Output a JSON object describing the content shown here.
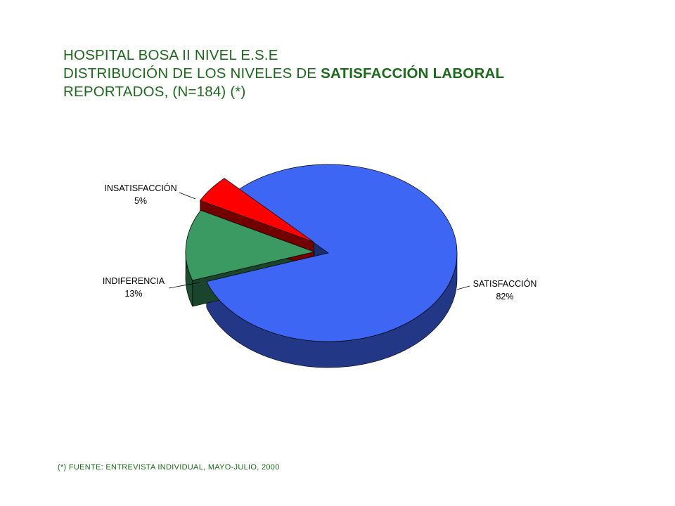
{
  "title": {
    "line1": "HOSPITAL BOSA II NIVEL E.S.E",
    "line2_prefix": "DISTRIBUCIÓN DE LOS NIVELES DE ",
    "line2_bold": "SATISFACCIÓN LABORAL",
    "line3": "REPORTADOS,  (N=184) (*)"
  },
  "chart_data": {
    "type": "pie",
    "style": "3d-exploded",
    "total_n": 184,
    "slices": [
      {
        "label": "SATISFACCIÓN",
        "value_label": "82%",
        "value": 82,
        "color": "#3d66f5"
      },
      {
        "label": "INDIFERENCIA",
        "value_label": "13%",
        "value": 13,
        "color": "#3a9a62"
      },
      {
        "label": "INSATISFACCIÓN",
        "value_label": "5%",
        "value": 5,
        "color": "#ff0000"
      }
    ]
  },
  "footnote": "(*) FUENTE:  ENTREVISTA  INDIVIDUAL,  MAYO-JULIO, 2000"
}
